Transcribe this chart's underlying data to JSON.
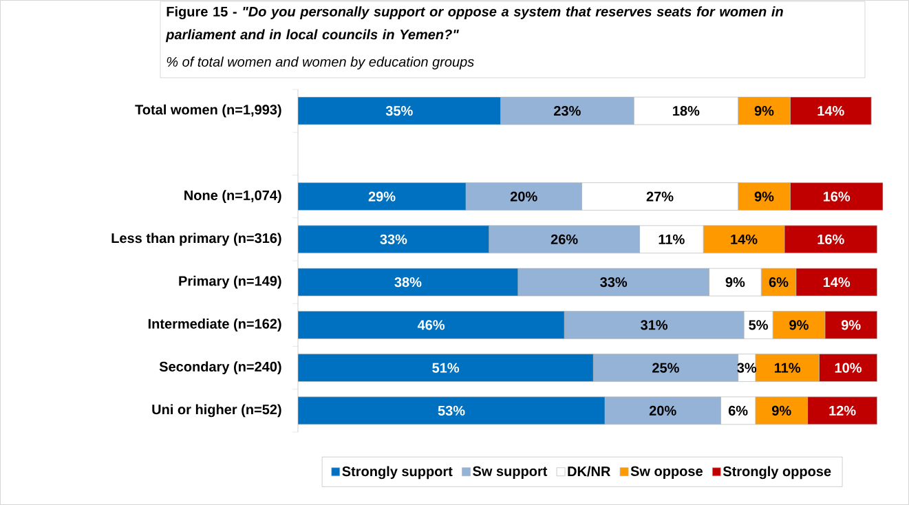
{
  "chart_data": {
    "type": "bar",
    "orientation": "horizontal",
    "stacked": true,
    "legend": "bottom",
    "title": "**Figure 15 -** *\"Do you personally support or oppose a system that reserves seats for women in parliament and in local councils in Yemen?\"*",
    "subtitle": "% of total women and women by education groups",
    "categories": [
      "Total women (n=1,993)",
      null,
      "None (n=1,074)",
      "Less than primary (n=316)",
      "Primary (n=149)",
      "Intermediate (n=162)",
      "Secondary (n=240)",
      "Uni or higher (n=52)"
    ],
    "series": [
      {
        "name": "Strongly support",
        "color": "#0070c0",
        "values": [
          35,
          null,
          29,
          33,
          38,
          46,
          51,
          53
        ],
        "value_labels": [
          "35%",
          null,
          "29%",
          "33%",
          "38%",
          "46%",
          "51%",
          "53%"
        ]
      },
      {
        "name": "Sw support",
        "color": "#95b3d7",
        "values": [
          23,
          null,
          20,
          26,
          33,
          31,
          25,
          20
        ],
        "value_labels": [
          "23%",
          null,
          "20%",
          "26%",
          "33%",
          "31%",
          "25%",
          "20%"
        ]
      },
      {
        "name": "DK/NR",
        "color": "#ffffff",
        "values": [
          18,
          null,
          27,
          11,
          9,
          5,
          3,
          6
        ],
        "value_labels": [
          "18%",
          null,
          "27%",
          "11%",
          "9%",
          "5%",
          "3%",
          "6%"
        ]
      },
      {
        "name": "Sw oppose",
        "color": "#ff9900",
        "values": [
          9,
          null,
          9,
          14,
          6,
          9,
          11,
          9
        ],
        "value_labels": [
          "9%",
          null,
          "9%",
          "14%",
          "6%",
          "9%",
          "11%",
          "9%"
        ]
      },
      {
        "name": "Strongly oppose",
        "color": "#c00000",
        "values": [
          14,
          null,
          16,
          16,
          14,
          9,
          10,
          12
        ],
        "value_labels": [
          "14%",
          null,
          "16%",
          "16%",
          "14%",
          "9%",
          "10%",
          "12%"
        ]
      }
    ]
  }
}
